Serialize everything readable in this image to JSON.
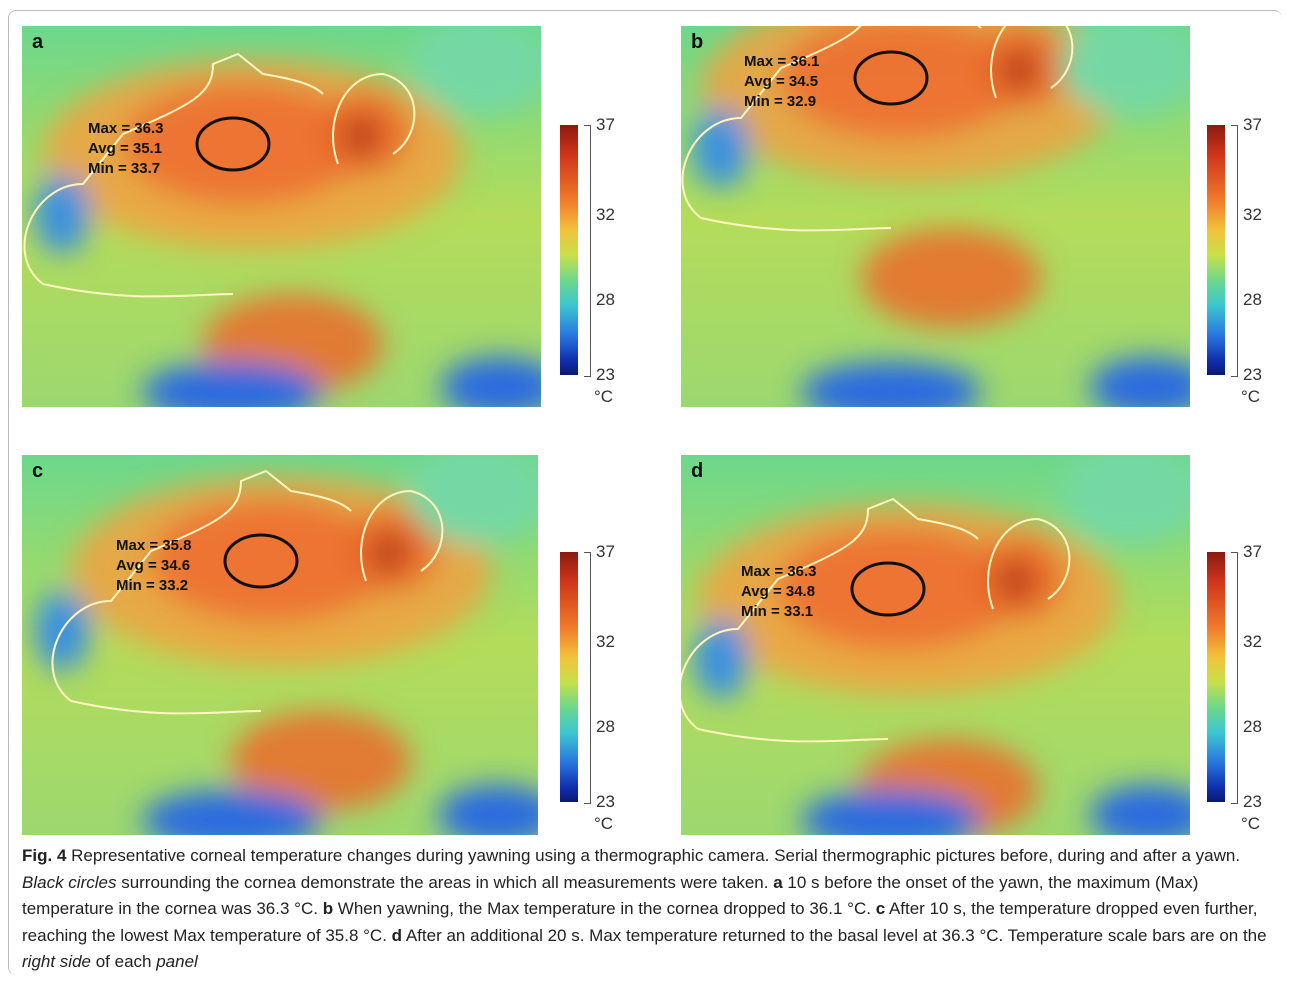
{
  "panels": [
    {
      "label": "a",
      "stats": [
        "Max = 36.3",
        "Avg = 35.1",
        "Min = 33.7"
      ],
      "scale": {
        "ticks": [
          "37",
          "32",
          "28",
          "23"
        ],
        "unit": "°C"
      }
    },
    {
      "label": "b",
      "stats": [
        "Max = 36.1",
        "Avg = 34.5",
        "Min = 32.9"
      ],
      "scale": {
        "ticks": [
          "37",
          "32",
          "28",
          "23"
        ],
        "unit": "°C"
      }
    },
    {
      "label": "c",
      "stats": [
        "Max = 35.8",
        "Avg = 34.6",
        "Min = 33.2"
      ],
      "scale": {
        "ticks": [
          "37",
          "32",
          "28",
          "23"
        ],
        "unit": "°C"
      }
    },
    {
      "label": "d",
      "stats": [
        "Max = 36.3",
        "Avg = 34.8",
        "Min = 33.1"
      ],
      "scale": {
        "ticks": [
          "37",
          "32",
          "28",
          "23"
        ],
        "unit": "°C"
      }
    }
  ],
  "caption": [
    {
      "text": "Fig. 4",
      "style": "bold"
    },
    {
      "text": "  Representative corneal temperature changes during yawning using a thermographic camera. Serial thermographic pictures before, during and after a yawn. ",
      "style": "normal"
    },
    {
      "text": "Black circles",
      "style": "italic"
    },
    {
      "text": " surrounding the cornea demonstrate the areas in which all measurements were taken. ",
      "style": "normal"
    },
    {
      "text": "a",
      "style": "bold"
    },
    {
      "text": " 10 s before the onset of the yawn, the maximum (Max) temperature in the cornea was 36.3 °C. ",
      "style": "normal"
    },
    {
      "text": "b",
      "style": "bold"
    },
    {
      "text": " When yawning, the Max temperature in the cornea dropped to 36.1 °C. ",
      "style": "normal"
    },
    {
      "text": "c",
      "style": "bold"
    },
    {
      "text": " After 10 s, the temperature dropped even further, reaching the lowest Max temperature of 35.8 °C. ",
      "style": "normal"
    },
    {
      "text": "d",
      "style": "bold"
    },
    {
      "text": " After an additional 20 s. Max temperature returned to the basal level at 36.3 °C. Temperature scale bars are on the ",
      "style": "normal"
    },
    {
      "text": "right side",
      "style": "italic"
    },
    {
      "text": " of each ",
      "style": "normal"
    },
    {
      "text": "panel",
      "style": "italic"
    }
  ]
}
